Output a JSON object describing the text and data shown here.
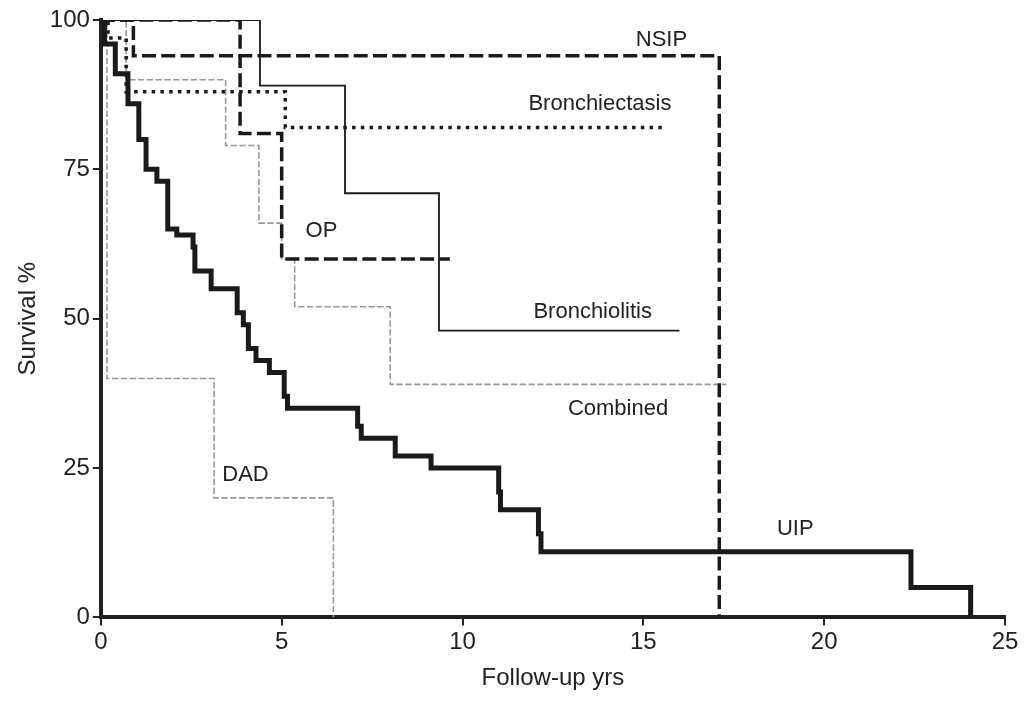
{
  "chart_data": {
    "type": "step",
    "xlabel": "Follow-up yrs",
    "ylabel": "Survival %",
    "xlim": [
      0,
      25
    ],
    "xticks": [
      0,
      5,
      10,
      15,
      20,
      25
    ],
    "ylim": [
      0,
      100
    ],
    "yticks": [
      0,
      25,
      50,
      75,
      100
    ],
    "grid": false,
    "legend": false,
    "series": [
      {
        "name": "UIP",
        "color": "#1a1a1a",
        "line_style": "solid",
        "x": [
          0,
          0.1,
          0.4,
          0.75,
          1.05,
          1.25,
          1.55,
          1.85,
          2.1,
          2.55,
          2.6,
          3.05,
          3.77,
          3.94,
          4.08,
          4.29,
          4.66,
          5.07,
          5.16,
          7.1,
          7.2,
          8.14,
          9.13,
          11.0,
          11.05,
          12.1,
          12.17,
          22.4,
          24.05
        ],
        "values": [
          100,
          96,
          91,
          86,
          80,
          75,
          73,
          65,
          64,
          62,
          58,
          55,
          51,
          49,
          45,
          43,
          41,
          37,
          35,
          32,
          30,
          27,
          25,
          21,
          18,
          14,
          11,
          5,
          0
        ]
      },
      {
        "name": "NSIP",
        "color": "#1a1a1a",
        "line_style": "dashed",
        "x": [
          0,
          0.9,
          17.1
        ],
        "values": [
          100,
          94,
          0
        ]
      },
      {
        "name": "Bronchiectasis",
        "color": "#1a1a1a",
        "line_style": "dotted",
        "x": [
          0,
          0.2,
          0.7,
          5.1,
          15.6
        ],
        "values": [
          100,
          97,
          88,
          82,
          82
        ]
      },
      {
        "name": "OP",
        "color": "#1a1a1a",
        "line_style": "dashed",
        "x": [
          0,
          3.85,
          5.0,
          9.65
        ],
        "values": [
          100,
          81,
          60,
          60
        ]
      },
      {
        "name": "Bronchiolitis",
        "color": "#1a1a1a",
        "line_style": "solid",
        "x": [
          0,
          4.4,
          6.75,
          9.35,
          16.0
        ],
        "values": [
          100,
          89,
          71,
          48,
          48
        ]
      },
      {
        "name": "Combined",
        "color": "#999999",
        "line_style": "dashed",
        "x": [
          0,
          0.7,
          3.45,
          4.37,
          5.0,
          5.36,
          8.0,
          17.3
        ],
        "values": [
          100,
          90,
          79,
          66,
          60,
          52,
          39,
          39
        ]
      },
      {
        "name": "DAD",
        "color": "#999999",
        "line_style": "dashed",
        "x": [
          0,
          0.17,
          3.13,
          6.43
        ],
        "values": [
          100,
          40,
          20,
          0
        ]
      }
    ]
  }
}
